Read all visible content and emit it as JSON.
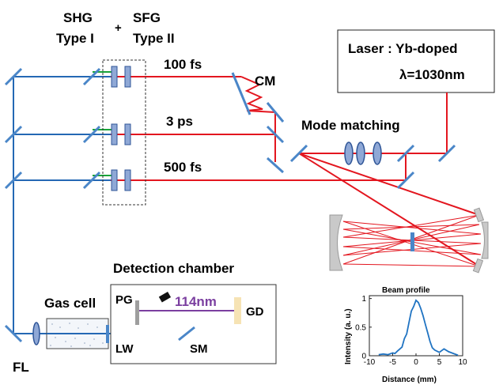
{
  "labels": {
    "shg_line1": "SHG",
    "shg_line2": "Type I",
    "plus": "+",
    "sfg_line1": "SFG",
    "sfg_line2": "Type II",
    "pulse_100fs": "100 fs",
    "pulse_3ps": "3 ps",
    "pulse_500fs": "500 fs",
    "cm": "CM",
    "mode_matching": "Mode matching",
    "laser_line1": "Laser : Yb-doped",
    "laser_line2": "λ=1030nm",
    "detection_chamber": "Detection chamber",
    "gas_cell": "Gas cell",
    "pg": "PG",
    "wavelength_114": "114nm",
    "gd": "GD",
    "fl": "FL",
    "lw": "LW",
    "sm": "SM"
  },
  "colors": {
    "fundamental_beam": "#e3161f",
    "harmonic_beam": "#2468b4",
    "green_beam": "#1aa33a",
    "vuv_beam": "#7b3fa0",
    "optic_fill": "#8fa8d6",
    "optic_edge": "#2f5597",
    "mirror": "#4a86c8",
    "cavity_mirror": "#c9c9c9",
    "detector": "#f6e3b4",
    "profile_line": "#1f73c2"
  },
  "chart_data": {
    "type": "line",
    "title": "Beam profile",
    "xlabel": "Distance (mm)",
    "ylabel": "Intensity (a. u.)",
    "xlim": [
      -10,
      10
    ],
    "ylim": [
      0,
      1.05
    ],
    "xticks": [
      -10,
      -5,
      0,
      5,
      10
    ],
    "yticks": [
      0,
      0.5,
      1
    ],
    "x": [
      -8,
      -7,
      -6,
      -5,
      -4.5,
      -4,
      -3,
      -2.5,
      -2,
      -1.5,
      -1,
      -0.5,
      0,
      0.5,
      1,
      1.5,
      2,
      2.5,
      3,
      3.5,
      4,
      5,
      6,
      7,
      8,
      9
    ],
    "y": [
      0.02,
      0.03,
      0.02,
      0.05,
      0.04,
      0.08,
      0.15,
      0.3,
      0.38,
      0.58,
      0.78,
      0.86,
      0.97,
      0.93,
      0.83,
      0.7,
      0.55,
      0.4,
      0.25,
      0.14,
      0.1,
      0.06,
      0.12,
      0.07,
      0.04,
      0.01
    ]
  }
}
